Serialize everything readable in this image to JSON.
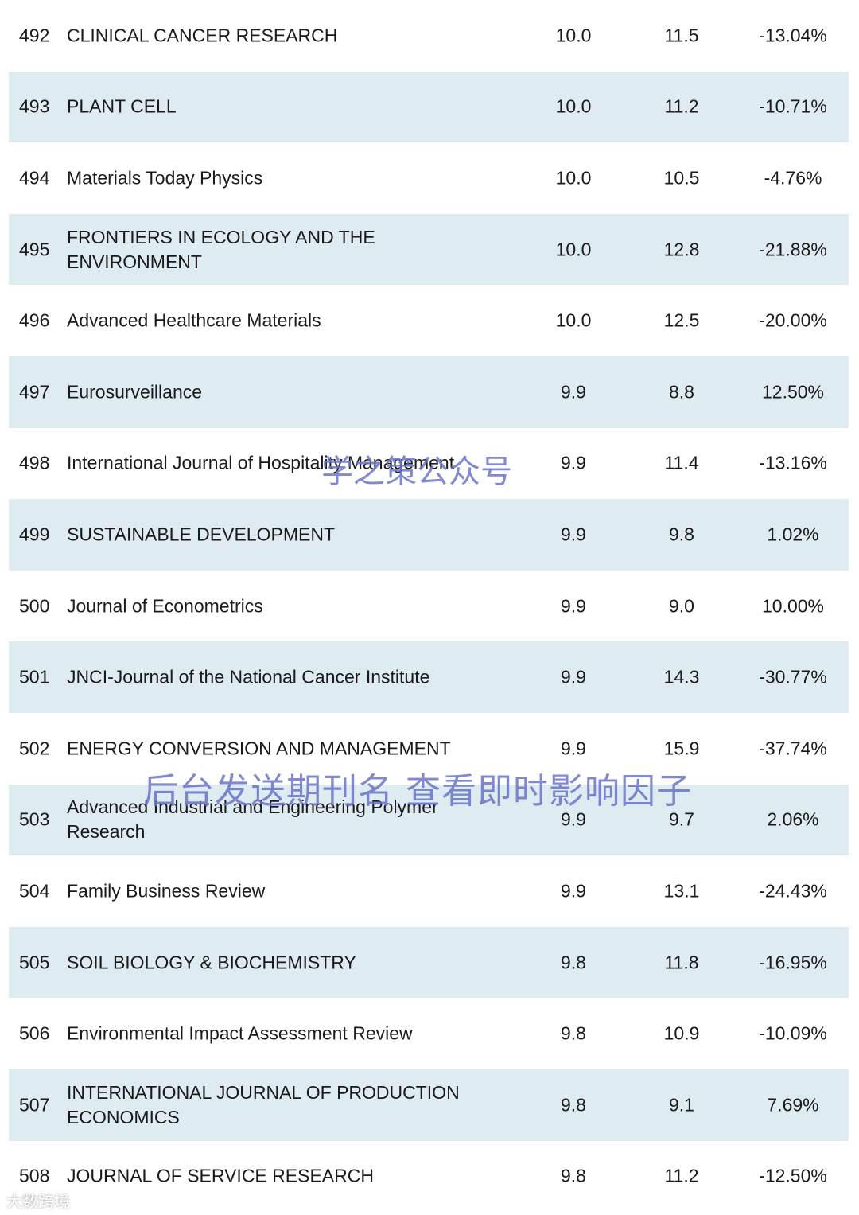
{
  "rows": [
    {
      "rank": "492",
      "name": "CLINICAL CANCER RESEARCH",
      "v1": "10.0",
      "v2": "11.5",
      "pct": "-13.04%"
    },
    {
      "rank": "493",
      "name": "PLANT CELL",
      "v1": "10.0",
      "v2": "11.2",
      "pct": "-10.71%"
    },
    {
      "rank": "494",
      "name": "Materials Today Physics",
      "v1": "10.0",
      "v2": "10.5",
      "pct": "-4.76%"
    },
    {
      "rank": "495",
      "name": "FRONTIERS IN ECOLOGY AND THE ENVIRONMENT",
      "v1": "10.0",
      "v2": "12.8",
      "pct": "-21.88%"
    },
    {
      "rank": "496",
      "name": "Advanced Healthcare Materials",
      "v1": "10.0",
      "v2": "12.5",
      "pct": "-20.00%"
    },
    {
      "rank": "497",
      "name": "Eurosurveillance",
      "v1": "9.9",
      "v2": "8.8",
      "pct": "12.50%"
    },
    {
      "rank": "498",
      "name": "International Journal of Hospitality Management",
      "v1": "9.9",
      "v2": "11.4",
      "pct": "-13.16%"
    },
    {
      "rank": "499",
      "name": "SUSTAINABLE DEVELOPMENT",
      "v1": "9.9",
      "v2": "9.8",
      "pct": "1.02%"
    },
    {
      "rank": "500",
      "name": "Journal of Econometrics",
      "v1": "9.9",
      "v2": "9.0",
      "pct": "10.00%"
    },
    {
      "rank": "501",
      "name": "JNCI-Journal of the National Cancer Institute",
      "v1": "9.9",
      "v2": "14.3",
      "pct": "-30.77%"
    },
    {
      "rank": "502",
      "name": "ENERGY CONVERSION AND MANAGEMENT",
      "v1": "9.9",
      "v2": "15.9",
      "pct": "-37.74%"
    },
    {
      "rank": "503",
      "name": "Advanced Industrial and Engineering Polymer Research",
      "v1": "9.9",
      "v2": "9.7",
      "pct": "2.06%"
    },
    {
      "rank": "504",
      "name": "Family Business Review",
      "v1": "9.9",
      "v2": "13.1",
      "pct": "-24.43%"
    },
    {
      "rank": "505",
      "name": "SOIL BIOLOGY & BIOCHEMISTRY",
      "v1": "9.8",
      "v2": "11.8",
      "pct": "-16.95%"
    },
    {
      "rank": "506",
      "name": "Environmental Impact Assessment Review",
      "v1": "9.8",
      "v2": "10.9",
      "pct": "-10.09%"
    },
    {
      "rank": "507",
      "name": "INTERNATIONAL JOURNAL OF PRODUCTION ECONOMICS",
      "v1": "9.8",
      "v2": "9.1",
      "pct": "7.69%"
    },
    {
      "rank": "508",
      "name": "JOURNAL OF SERVICE RESEARCH",
      "v1": "9.8",
      "v2": "11.2",
      "pct": "-12.50%"
    }
  ],
  "watermarks": {
    "top": "学之策公众号",
    "middle": "后台发送期刊名 查看即时影响因子",
    "corner": "大数跨境"
  },
  "colors": {
    "row_shade": "#deebf1",
    "watermark": "#6a74c8"
  }
}
